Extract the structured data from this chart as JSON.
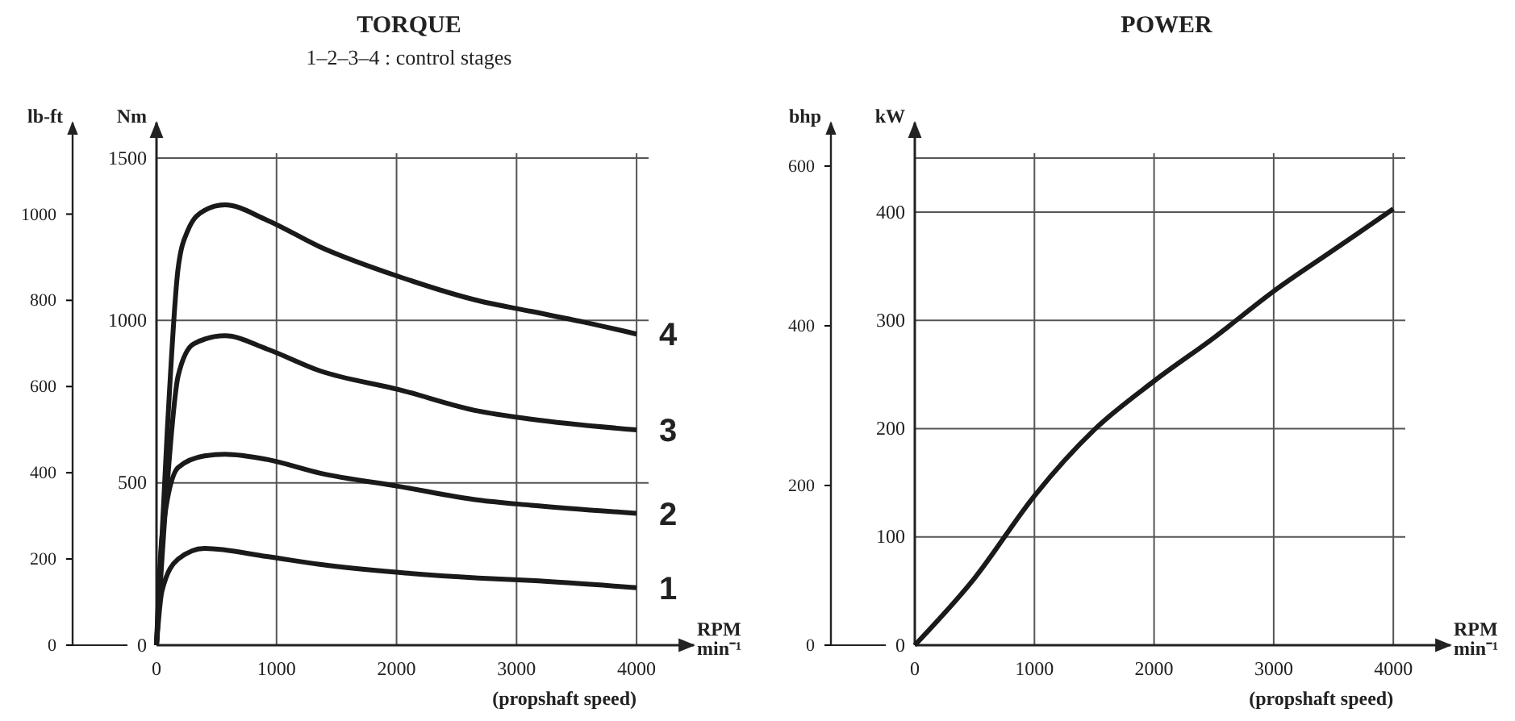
{
  "chart_data": [
    {
      "type": "line",
      "title": "TORQUE",
      "subtitle": "1–2–3–4 : control stages",
      "ylabel": "Nm",
      "y2label": "lb-ft",
      "xlabel": "RPM min⁻¹",
      "annotations": [
        "(propshaft speed)"
      ],
      "xlim": [
        0,
        4100
      ],
      "xticks": [
        0,
        1000,
        2000,
        3000,
        4000
      ],
      "ylim": [
        0,
        1500
      ],
      "yticks": [
        0,
        500,
        1000,
        1500
      ],
      "y2lim": [
        0,
        1130
      ],
      "y2ticks": [
        0,
        200,
        400,
        600,
        800,
        1000
      ],
      "grid": true,
      "series": [
        {
          "name": "4",
          "color": "#1a1a1a",
          "x": [
            0,
            90,
            180,
            260,
            400,
            570,
            920,
            1360,
            2020,
            2680,
            3120,
            3560,
            4000
          ],
          "values": [
            0,
            663,
            1160,
            1276,
            1339,
            1356,
            1309,
            1227,
            1135,
            1061,
            1028,
            995,
            958
          ]
        },
        {
          "name": "3",
          "color": "#1a1a1a",
          "x": [
            0,
            90,
            180,
            310,
            570,
            920,
            1360,
            2020,
            2680,
            3120,
            4000
          ],
          "values": [
            0,
            497,
            829,
            928,
            953,
            912,
            845,
            787,
            721,
            696,
            663
          ]
        },
        {
          "name": "2",
          "color": "#1a1a1a",
          "x": [
            0,
            45,
            180,
            400,
            570,
            920,
            1360,
            2020,
            2680,
            3120,
            4000
          ],
          "values": [
            0,
            331,
            547,
            583,
            588,
            572,
            530,
            489,
            447,
            431,
            406
          ]
        },
        {
          "name": "1",
          "color": "#1a1a1a",
          "x": [
            0,
            45,
            180,
            400,
            920,
            1360,
            2020,
            2680,
            3120,
            4000
          ],
          "values": [
            0,
            166,
            265,
            298,
            273,
            249,
            224,
            207,
            199,
            177
          ]
        }
      ]
    },
    {
      "type": "line",
      "title": "POWER",
      "ylabel": "kW",
      "y2label": "bhp",
      "xlabel": "RPM min⁻¹",
      "annotations": [
        "(propshaft speed)"
      ],
      "xlim": [
        0,
        4100
      ],
      "xticks": [
        0,
        1000,
        2000,
        3000,
        4000
      ],
      "ylim": [
        0,
        450
      ],
      "yticks": [
        0,
        100,
        200,
        300,
        400,
        {
          "value": 450,
          "label": null
        }
      ],
      "y2lim": [
        0,
        610
      ],
      "y2ticks": [
        0,
        200,
        400,
        600
      ],
      "grid": true,
      "series": [
        {
          "color": "#1a1a1a",
          "x": [
            0,
            500,
            1000,
            1500,
            2000,
            2500,
            3000,
            3500,
            4000
          ],
          "values": [
            0,
            62,
            138,
            199,
            244,
            284,
            327,
            365,
            403
          ]
        }
      ]
    }
  ]
}
